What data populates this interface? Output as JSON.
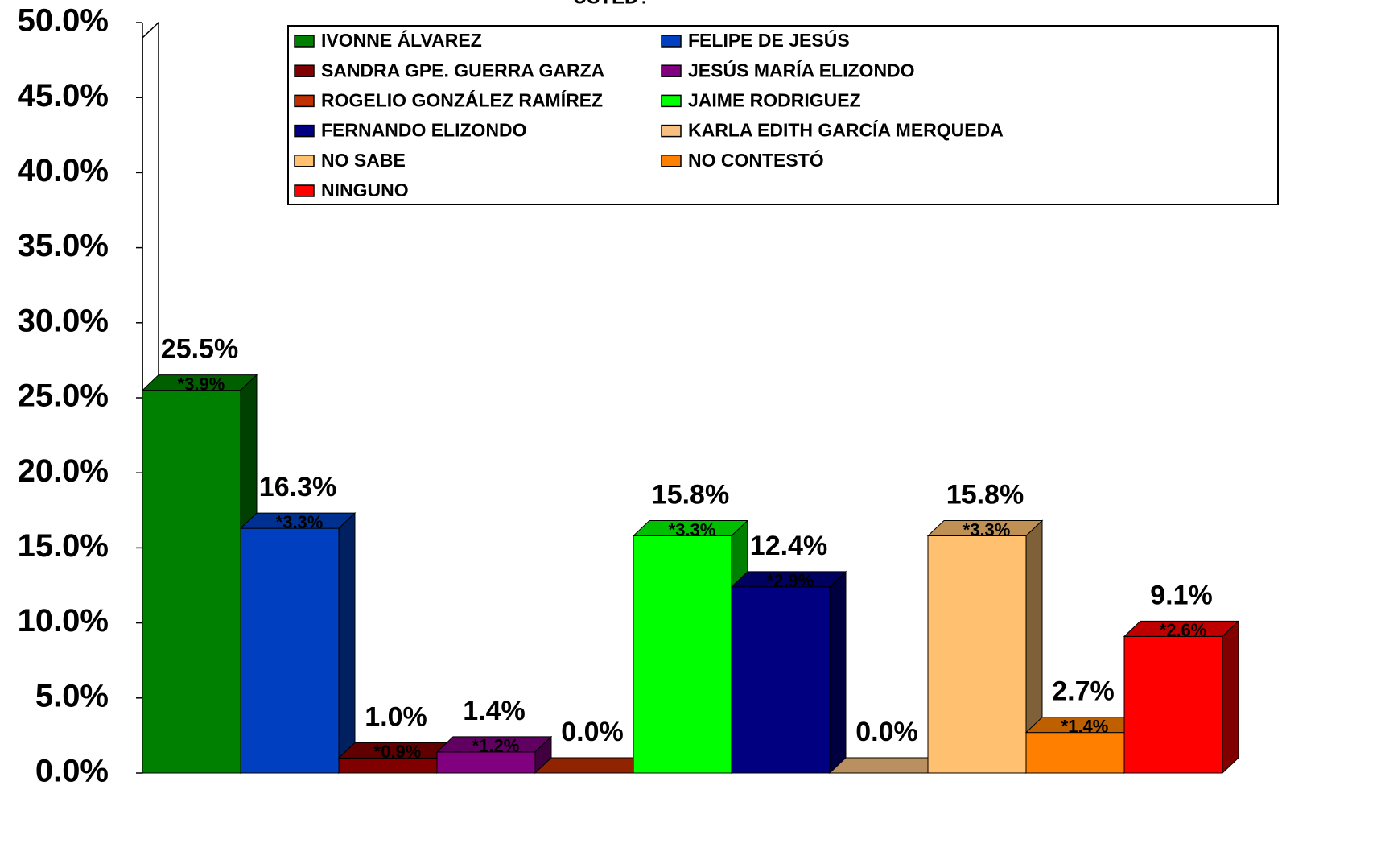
{
  "chart_data": {
    "type": "bar",
    "title": "USTED?",
    "ylim": [
      0,
      50
    ],
    "yticks": [
      {
        "value": 0,
        "label": "0.0%"
      },
      {
        "value": 5,
        "label": "5.0%"
      },
      {
        "value": 10,
        "label": "10.0%"
      },
      {
        "value": 15,
        "label": "15.0%"
      },
      {
        "value": 20,
        "label": "20.0%"
      },
      {
        "value": 25,
        "label": "25.0%"
      },
      {
        "value": 30,
        "label": "30.0%"
      },
      {
        "value": 35,
        "label": "35.0%"
      },
      {
        "value": 40,
        "label": "40.0%"
      },
      {
        "value": 45,
        "label": "45.0%"
      },
      {
        "value": 50,
        "label": "50.0%"
      }
    ],
    "series": [
      {
        "name": "IVONNE ÁLVAREZ",
        "color": "#008000",
        "values": [
          25.5
        ],
        "value_labels": [
          "25.5%"
        ],
        "error_labels": [
          "*3.9%"
        ]
      },
      {
        "name": "FELIPE DE JESÚS",
        "color": "#0040c0",
        "values": [
          16.3
        ],
        "value_labels": [
          "16.3%"
        ],
        "error_labels": [
          "*3.3%"
        ]
      },
      {
        "name": "SANDRA GPE. GUERRA GARZA",
        "color": "#800000",
        "values": [
          1.0
        ],
        "value_labels": [
          "1.0%"
        ],
        "error_labels": [
          "*0.9%"
        ]
      },
      {
        "name": "JESÚS MARÍA ELIZONDO",
        "color": "#800080",
        "values": [
          1.4
        ],
        "value_labels": [
          "1.4%"
        ],
        "error_labels": [
          "*1.2%"
        ]
      },
      {
        "name": "ROGELIO GONZÁLEZ RAMÍREZ",
        "color": "#c03000",
        "values": [
          0.0
        ],
        "value_labels": [
          "0.0%"
        ],
        "error_labels": [
          null
        ]
      },
      {
        "name": "JAIME RODRIGUEZ",
        "color": "#00ff00",
        "values": [
          15.8
        ],
        "value_labels": [
          "15.8%"
        ],
        "error_labels": [
          "*3.3%"
        ]
      },
      {
        "name": "FERNANDO ELIZONDO",
        "color": "#000080",
        "values": [
          12.4
        ],
        "value_labels": [
          "12.4%"
        ],
        "error_labels": [
          "*2.9%"
        ]
      },
      {
        "name": "KARLA EDITH GARCÍA MERQUEDA",
        "color": "#f8c080",
        "values": [
          0.0
        ],
        "value_labels": [
          "0.0%"
        ],
        "error_labels": [
          null
        ]
      },
      {
        "name": "NO SABE",
        "color": "#ffc070",
        "values": [
          15.8
        ],
        "value_labels": [
          "15.8%"
        ],
        "error_labels": [
          "*3.3%"
        ]
      },
      {
        "name": "NO CONTESTÓ",
        "color": "#ff8000",
        "values": [
          2.7
        ],
        "value_labels": [
          "2.7%"
        ],
        "error_labels": [
          "*1.4%"
        ]
      },
      {
        "name": "NINGUNO",
        "color": "#ff0000",
        "values": [
          9.1
        ],
        "value_labels": [
          "9.1%"
        ],
        "error_labels": [
          "*2.6%"
        ]
      }
    ]
  }
}
